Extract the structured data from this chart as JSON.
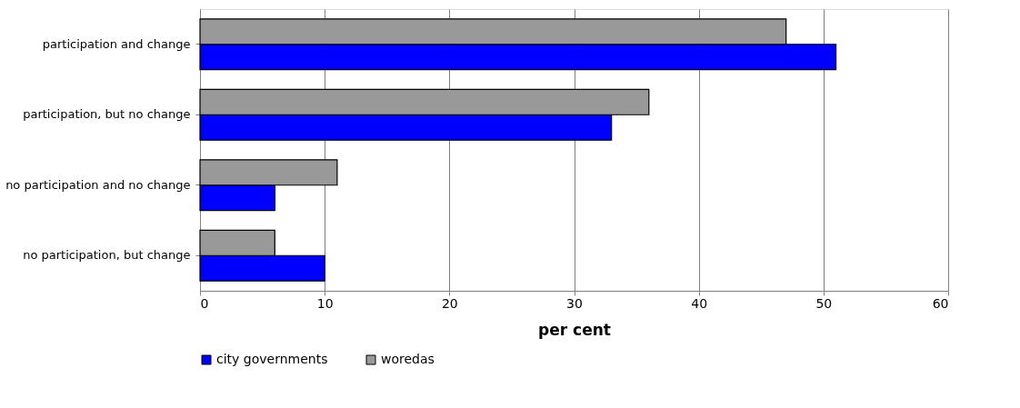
{
  "chart_data": {
    "type": "bar",
    "orientation": "horizontal",
    "xlabel": "per cent",
    "categories": [
      "participation and change",
      "participation, but no change",
      "no participation and no change",
      "no participation, but change"
    ],
    "series": [
      {
        "name": "city governments",
        "color": "#0000ff",
        "values": [
          51,
          33,
          6,
          10
        ]
      },
      {
        "name": "woredas",
        "color": "#999999",
        "values": [
          47,
          36,
          11,
          6
        ]
      }
    ],
    "xlim": [
      0,
      60
    ],
    "xticks": [
      0,
      10,
      20,
      30,
      40,
      50,
      60
    ],
    "grid": "x",
    "legend": "bottom"
  }
}
